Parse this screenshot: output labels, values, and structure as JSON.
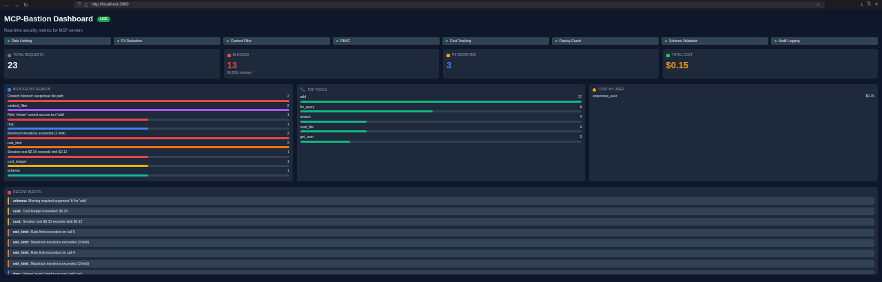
{
  "browser": {
    "url": "http://localhost:3000"
  },
  "header": {
    "title": "MCP-Bastion Dashboard",
    "badge": "LIVE",
    "subtitle": "Real-time security metrics for MCP servers"
  },
  "features": [
    "Rate Limiting",
    "PII Redaction",
    "Content Filter",
    "RBAC",
    "Cost Tracking",
    "Replay Guard",
    "Schema Validation",
    "Audit Logging"
  ],
  "stats": [
    {
      "label": "TOTAL REQUESTS",
      "value": "23",
      "sub": "",
      "color": "#f8fafc",
      "icon_color": "#64748b",
      "icon": "chart-icon"
    },
    {
      "label": "BLOCKED",
      "value": "13",
      "sub": "56.52% blocked",
      "color": "#ef4444",
      "icon_color": "#ef4444",
      "icon": "blocked-icon"
    },
    {
      "label": "PII REDACTED",
      "value": "3",
      "sub": "",
      "color": "#3b82f6",
      "icon_color": "#f59e0b",
      "icon": "lock-icon"
    },
    {
      "label": "TOTAL COST",
      "value": "$0.15",
      "sub": "",
      "color": "#f59e0b",
      "icon_color": "#22c55e",
      "icon": "money-icon"
    }
  ],
  "blocked": {
    "title": "BLOCKED BY REASON",
    "max": 2,
    "items": [
      {
        "label": "Content blocked: suspicious file path",
        "count": 2,
        "color": "#ef4444"
      },
      {
        "label": "content_filter",
        "count": 2,
        "color": "#a855f7"
      },
      {
        "label": "Role 'viewer' cannot access tool 'add'",
        "count": 1,
        "color": "#ef4444"
      },
      {
        "label": "rbac",
        "count": 1,
        "color": "#3b82f6"
      },
      {
        "label": "Maximum iterations exceeded (3 limit)",
        "count": 2,
        "color": "#ef4444"
      },
      {
        "label": "rate_limit",
        "count": 2,
        "color": "#f97316"
      },
      {
        "label": "Session cost $0.15 exceeds limit $0.12",
        "count": 1,
        "color": "#ef4444"
      },
      {
        "label": "cost_budget",
        "count": 1,
        "color": "#eab308"
      },
      {
        "label": "schema",
        "count": 1,
        "color": "#14b8a6"
      }
    ]
  },
  "tools": {
    "title": "TOP TOOLS",
    "max": 17,
    "items": [
      {
        "label": "add",
        "count": 17
      },
      {
        "label": "fin_query",
        "count": 8
      },
      {
        "label": "search",
        "count": 4
      },
      {
        "label": "read_file",
        "count": 4
      },
      {
        "label": "get_user",
        "count": 3
      }
    ]
  },
  "users": {
    "title": "COST BY USER",
    "items": [
      {
        "label": "expensive_user",
        "value": "$0.15"
      }
    ]
  },
  "alerts": {
    "title": "RECENT ALERTS",
    "items": [
      {
        "type": "schema:",
        "text": "Missing required argument 'b' for 'add'",
        "color": "#f59e0b"
      },
      {
        "type": "cost:",
        "text": "Cost budget exceeded: $0.20",
        "color": "#f59e0b"
      },
      {
        "type": "cost:",
        "text": "Session cost $0.15 exceeds limit $0.12",
        "color": "#f59e0b"
      },
      {
        "type": "rate_limit:",
        "text": "Rate limit exceeded on call 5",
        "color": "#f97316"
      },
      {
        "type": "rate_limit:",
        "text": "Maximum iterations exceeded (3 limit)",
        "color": "#f97316"
      },
      {
        "type": "rate_limit:",
        "text": "Rate limit exceeded on call 4",
        "color": "#f97316"
      },
      {
        "type": "rate_limit:",
        "text": "Maximum iterations exceeded (3 limit)",
        "color": "#f97316"
      },
      {
        "type": "rbac:",
        "text": "Viewer 'guest' tried to access 'add' tool",
        "color": "#3b82f6"
      }
    ]
  }
}
